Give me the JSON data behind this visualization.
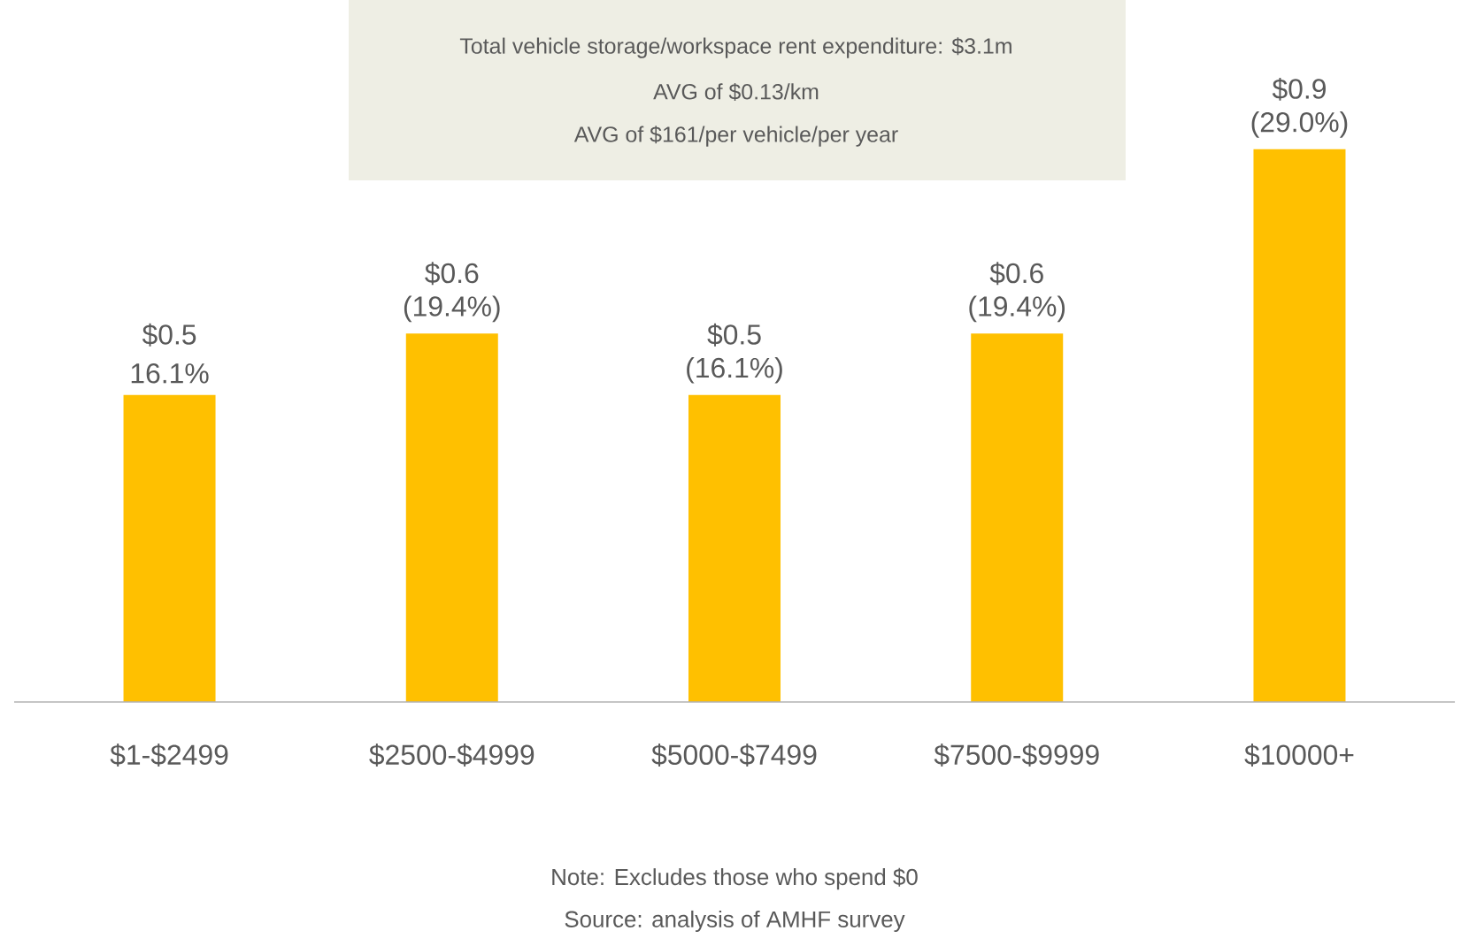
{
  "chart_data": {
    "type": "bar",
    "categories": [
      "$1-$2499",
      "$2500-$4999",
      "$5000-$7499",
      "$7500-$9999",
      "$10000+"
    ],
    "values": [
      0.5,
      0.6,
      0.5,
      0.6,
      0.9
    ],
    "color": "#ffc000",
    "value_labels": [
      "$0.5",
      "$0.6",
      "$0.5",
      "$0.6",
      "$0.9"
    ],
    "annotations": [
      {
        "text": "16.1%",
        "x": "$1-$2499",
        "y": 0.5
      },
      {
        "text": "(19.4%)",
        "x": "$2500-$4999",
        "y": 0.6
      },
      {
        "text": "(16.1%)",
        "x": "$5000-$7499",
        "y": 0.5
      },
      {
        "text": "(19.4%)",
        "x": "$7500-$9999",
        "y": 0.6
      },
      {
        "text": "(29.0%)",
        "x": "$10000+",
        "y": 0.9
      },
      "Total vehicle storage/workspace rent expenditure: $3.1m",
      "AVG of $0.13/km",
      "AVG of $161/per vehicle/per year",
      "Note: Excludes those who spend $0",
      "Source: analysis of AMHF survey"
    ],
    "data_labels": false,
    "legend": false
  }
}
